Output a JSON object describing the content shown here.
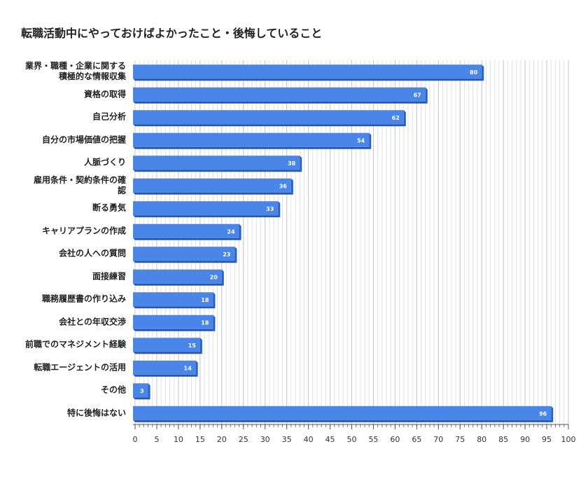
{
  "chart_data": {
    "type": "barh",
    "title": "転職活動中にやっておけばよかったこと・後悔していること",
    "categories": [
      "業界・職種・企業に関する\n積極的な情報収集",
      "資格の取得",
      "自己分析",
      "自分の市場価値の把握",
      "人脈づくり",
      "雇用条件・契約条件の確\n認",
      "断る勇気",
      "キャリアプランの作成",
      "会社の人への質問",
      "面接練習",
      "職務履歴書の作り込み",
      "会社との年収交渉",
      "前職でのマネジメント経験",
      "転職エージェントの活用",
      "その他",
      "特に後悔はない"
    ],
    "values": [
      80,
      67,
      62,
      54,
      38,
      36,
      33,
      24,
      23,
      20,
      18,
      18,
      15,
      14,
      3,
      96
    ],
    "color": "#4a86e8",
    "xlim": [
      0,
      100
    ],
    "xticks": [
      0,
      5,
      10,
      15,
      20,
      25,
      30,
      35,
      40,
      45,
      50,
      55,
      60,
      65,
      70,
      75,
      80,
      85,
      90,
      95,
      100
    ],
    "grid": true
  }
}
